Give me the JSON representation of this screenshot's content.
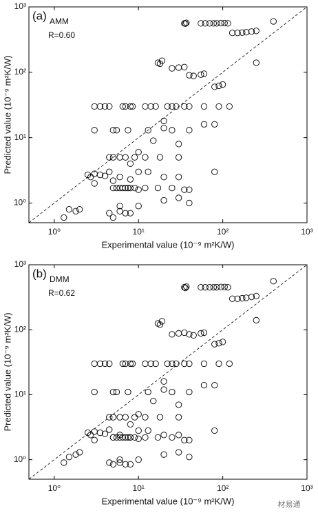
{
  "chart_data": [
    {
      "type": "scatter",
      "panel_label": "(a)",
      "model": "AMM",
      "annotation": "R=0.60",
      "xlabel": "Experimental value (10⁻⁹ m²K/W)",
      "ylabel": "Predicted value (10⁻⁹ m²K/W)",
      "log_x": true,
      "log_y": true,
      "color": "#000000",
      "reference_line": "dashed",
      "xlim": [
        0.5,
        1000
      ],
      "ylim": [
        0.5,
        1000
      ],
      "xticks": [
        {
          "value": 1,
          "label": "10⁰"
        },
        {
          "value": 10,
          "label": "10¹"
        },
        {
          "value": 100,
          "label": "10²"
        },
        {
          "value": 1000,
          "label": "10³"
        }
      ],
      "yticks": [
        {
          "value": 1,
          "label": "10⁰"
        },
        {
          "value": 10,
          "label": "10¹"
        },
        {
          "value": 100,
          "label": "10²"
        },
        {
          "value": 1000,
          "label": "10³"
        }
      ],
      "x": [
        35,
        37,
        36,
        55,
        62,
        70,
        78,
        85,
        95,
        105,
        115,
        130,
        150,
        170,
        190,
        220,
        250,
        400,
        17,
        18,
        19,
        25,
        30,
        35,
        40,
        45,
        55,
        60,
        80,
        90,
        100,
        250,
        3,
        3.5,
        4,
        4.5,
        6.5,
        7,
        8,
        8.5,
        12,
        14,
        16,
        22,
        25,
        28,
        35,
        40,
        60,
        90,
        120,
        3,
        5,
        5.5,
        7.5,
        13,
        20,
        25,
        40,
        60,
        80,
        20,
        15,
        30,
        10,
        4.5,
        5,
        6,
        7,
        9,
        12,
        18,
        30,
        8,
        2.5,
        2.7,
        3,
        3.5,
        4,
        4.5,
        5,
        6,
        8,
        10,
        13,
        20,
        30,
        80,
        3,
        5,
        5.5,
        6,
        6.5,
        7,
        7.5,
        8,
        9,
        10,
        12,
        17,
        25,
        35,
        40,
        1.5,
        1.3,
        1.8,
        2,
        4.5,
        5,
        6,
        7,
        8,
        10,
        20,
        30,
        40,
        6
      ],
      "values": [
        560,
        570,
        555,
        560,
        560,
        560,
        560,
        560,
        565,
        565,
        560,
        400,
        400,
        405,
        410,
        420,
        430,
        600,
        140,
        135,
        150,
        115,
        118,
        120,
        90,
        88,
        92,
        95,
        60,
        62,
        65,
        140,
        30,
        30,
        30,
        30,
        30,
        30,
        30,
        30,
        30,
        30,
        30,
        30,
        30,
        30,
        30,
        30,
        30,
        30,
        30,
        13,
        13,
        13,
        13,
        13,
        14,
        13,
        13,
        16,
        16,
        18,
        9,
        8,
        6,
        5,
        5,
        5,
        5,
        5,
        5,
        5,
        5,
        4,
        2.7,
        2.5,
        2.8,
        2.7,
        2.6,
        3,
        2.2,
        2.5,
        2.3,
        3,
        3,
        2.5,
        2.5,
        3,
        2,
        1.7,
        1.7,
        1.7,
        1.7,
        1.7,
        1.7,
        1.7,
        1.7,
        1.6,
        1.7,
        1.7,
        1.7,
        1.6,
        1.6,
        0.8,
        0.6,
        0.75,
        0.8,
        0.7,
        0.6,
        0.75,
        0.7,
        0.7,
        0.9,
        1.1,
        1.2,
        1,
        0.9
      ]
    },
    {
      "type": "scatter",
      "panel_label": "(b)",
      "model": "DMM",
      "annotation": "R=0.62",
      "xlabel": "Experimental value (10⁻⁹ m²K/W)",
      "ylabel": "Predicted value (10⁻⁹ m²K/W)",
      "log_x": true,
      "log_y": true,
      "color": "#000000",
      "reference_line": "dashed",
      "xlim": [
        0.5,
        1000
      ],
      "ylim": [
        0.5,
        1000
      ],
      "xticks": [
        {
          "value": 1,
          "label": "10⁰"
        },
        {
          "value": 10,
          "label": "10¹"
        },
        {
          "value": 100,
          "label": "10²"
        },
        {
          "value": 1000,
          "label": "10³"
        }
      ],
      "yticks": [
        {
          "value": 1,
          "label": "10⁰"
        },
        {
          "value": 10,
          "label": "10¹"
        },
        {
          "value": 100,
          "label": "10²"
        },
        {
          "value": 1000,
          "label": "10³"
        }
      ],
      "x": [
        35,
        37,
        36,
        55,
        62,
        70,
        78,
        85,
        95,
        105,
        115,
        130,
        150,
        170,
        190,
        220,
        250,
        400,
        17,
        18,
        19,
        25,
        30,
        35,
        40,
        45,
        55,
        60,
        80,
        90,
        100,
        250,
        3,
        3.5,
        4,
        4.5,
        6.5,
        7,
        8,
        8.5,
        12,
        14,
        16,
        22,
        25,
        28,
        35,
        40,
        60,
        90,
        120,
        3,
        5,
        5.5,
        7.5,
        13,
        20,
        25,
        40,
        60,
        80,
        20,
        15,
        30,
        10,
        4.5,
        5,
        6,
        7,
        9,
        12,
        18,
        30,
        8,
        2.5,
        2.7,
        3,
        3.5,
        4,
        4.5,
        5,
        6,
        8,
        10,
        13,
        20,
        30,
        80,
        3,
        5,
        5.5,
        6,
        6.5,
        7,
        7.5,
        8,
        9,
        10,
        12,
        17,
        25,
        35,
        40,
        1.5,
        1.3,
        1.8,
        2,
        4.5,
        5,
        6,
        7,
        8,
        10,
        20,
        30,
        40,
        6
      ],
      "values": [
        450,
        460,
        440,
        450,
        450,
        450,
        450,
        450,
        455,
        455,
        450,
        300,
        300,
        305,
        310,
        320,
        330,
        560,
        125,
        120,
        135,
        85,
        88,
        90,
        85,
        82,
        88,
        90,
        60,
        62,
        65,
        140,
        30,
        30,
        30,
        30,
        30,
        30,
        30,
        30,
        30,
        30,
        30,
        30,
        30,
        30,
        30,
        30,
        30,
        30,
        30,
        11,
        11,
        11,
        11,
        11,
        12,
        11,
        11,
        14,
        14,
        16,
        8,
        7,
        5,
        4.5,
        4.5,
        4.5,
        4.5,
        4.5,
        4.5,
        4.5,
        4.5,
        3.5,
        2.6,
        2.4,
        2.7,
        2.6,
        2.5,
        2.9,
        2.2,
        2.4,
        2.2,
        2.8,
        2.8,
        2.4,
        2.4,
        2.8,
        2,
        2.2,
        2.2,
        2.2,
        2.2,
        2.2,
        2.2,
        2.2,
        2.2,
        2.1,
        2.2,
        2.2,
        2.2,
        2,
        2,
        1.1,
        0.9,
        1.2,
        1.3,
        0.9,
        0.85,
        0.9,
        0.85,
        0.85,
        1,
        1.2,
        1.3,
        1.1,
        1
      ]
    }
  ],
  "watermark": "材易通"
}
